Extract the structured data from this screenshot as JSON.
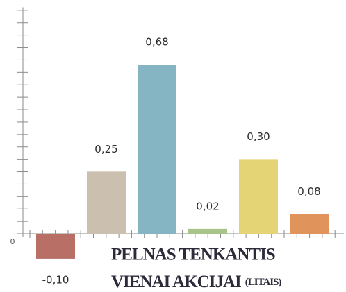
{
  "chart_data": {
    "type": "bar",
    "title": [
      "PELNAS TENKANTIS",
      "VIENAI AKCIJAI"
    ],
    "subtitle": "(LITAIS)",
    "categories": [
      null,
      null,
      null,
      null,
      null,
      null
    ],
    "values": [
      -0.1,
      0.25,
      0.68,
      0.02,
      0.3,
      0.08
    ],
    "value_labels": [
      "-0,10",
      "0,25",
      "0,68",
      "0,02",
      "0,30",
      "0,08"
    ],
    "colors": [
      "#b87066",
      "#cbc0b0",
      "#85b5c2",
      "#a9c48a",
      "#e5d475",
      "#e0935a"
    ],
    "ylim": [
      -0.2,
      0.91
    ],
    "yticks": [
      0
    ],
    "grid": false
  }
}
